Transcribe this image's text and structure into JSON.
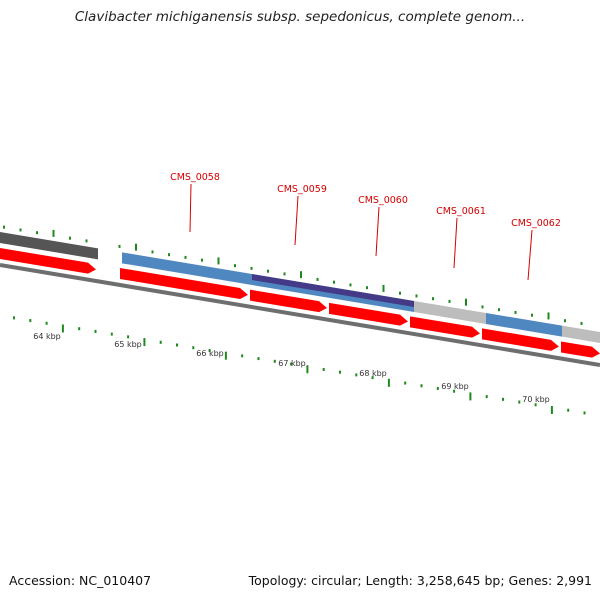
{
  "title": "Clavibacter michiganensis subsp. sepedonicus, complete genom...",
  "footer": {
    "accession": "Accession: NC_010407",
    "summary": "Topology: circular; Length: 3,258,645 bp; Genes: 2,991"
  },
  "colors": {
    "forward_cds": "#ff0000",
    "blue_feature": "#4f88c0",
    "purple_feature": "#443a88",
    "gray_feature": "#bdbdbd",
    "dark_feature": "#555555",
    "backbone": "#6e6e6e",
    "ticks": "#1e8a1e",
    "gene_label": "#d40000"
  },
  "gene_labels": [
    {
      "id": "CMS_0058"
    },
    {
      "id": "CMS_0059"
    },
    {
      "id": "CMS_0060"
    },
    {
      "id": "CMS_0061"
    },
    {
      "id": "CMS_0062"
    }
  ],
  "scale_labels": [
    "64 kbp",
    "65 kbp",
    "66 kbp",
    "67 kbp",
    "68 kbp",
    "69 kbp",
    "70 kbp"
  ]
}
